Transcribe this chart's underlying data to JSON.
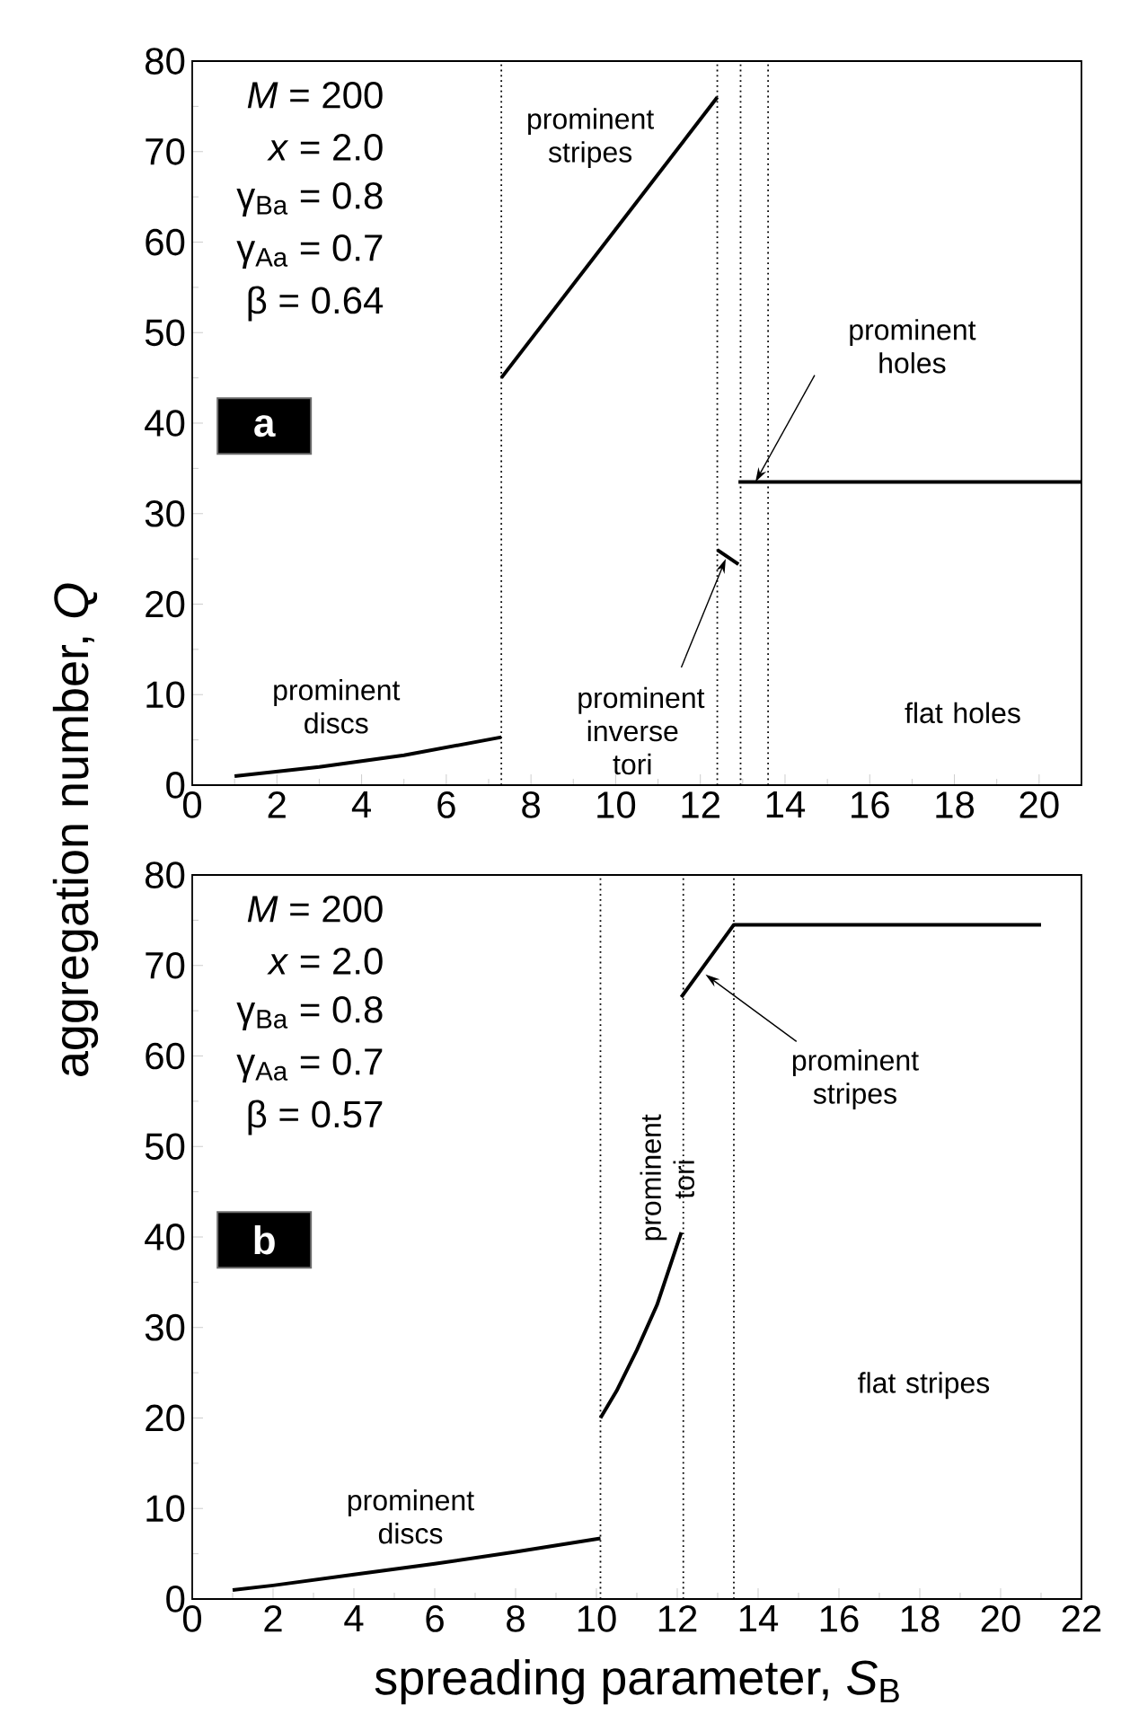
{
  "chart_data": [
    {
      "type": "line",
      "ylabel": "aggregation number, *Q*",
      "xlim": [
        0,
        21
      ],
      "ylim": [
        0,
        80
      ],
      "xticks": [
        0,
        2,
        4,
        6,
        8,
        10,
        12,
        14,
        16,
        18,
        20
      ],
      "yticks": [
        0,
        10,
        20,
        30,
        40,
        50,
        60,
        70,
        80
      ],
      "grid": false,
      "marker": "none",
      "line_style": "solid",
      "series": [
        {
          "color": "#000000",
          "x": [
            1,
            3,
            5,
            7.3
          ],
          "values": [
            1,
            2,
            3.3,
            5.3
          ]
        },
        {
          "color": "#000000",
          "x": [
            7.3,
            12.4
          ],
          "values": [
            45,
            76
          ]
        },
        {
          "color": "#000000",
          "x": [
            12.4,
            12.9
          ],
          "values": [
            26,
            24.4
          ]
        },
        {
          "color": "#000000",
          "x": [
            12.9,
            21
          ],
          "values": [
            33.5,
            33.5
          ]
        }
      ],
      "ref_lines": [
        {
          "axis": "x",
          "value": 7.3,
          "color": "#000000",
          "line_style": "dotted"
        },
        {
          "axis": "x",
          "value": 12.4,
          "color": "#000000",
          "line_style": "dotted"
        },
        {
          "axis": "x",
          "value": 12.95,
          "color": "#000000",
          "line_style": "dotted"
        },
        {
          "axis": "x",
          "value": 13.6,
          "color": "#000000",
          "line_style": "dotted"
        }
      ],
      "annotations": [
        "*M* = 200",
        "*x* = 2.0",
        "γ$_{Ba}$ = 0.8",
        "γ$_{Aa}$ = 0.7",
        "β = 0.64",
        "a",
        "prominent stripes",
        "prominent discs",
        {
          "text": "prominent inverse tori",
          "x": 12.6,
          "y": 25
        },
        {
          "text": "prominent holes",
          "x": 13.3,
          "y": 33.5
        },
        "flat holes"
      ]
    },
    {
      "type": "line",
      "xlabel": "spreading parameter, *S*$_{B}$",
      "xlim": [
        0,
        22
      ],
      "ylim": [
        0,
        80
      ],
      "xticks": [
        0,
        2,
        4,
        6,
        8,
        10,
        12,
        14,
        16,
        18,
        20,
        22
      ],
      "yticks": [
        0,
        10,
        20,
        30,
        40,
        50,
        60,
        70,
        80
      ],
      "grid": false,
      "marker": "none",
      "line_style": "solid",
      "series": [
        {
          "color": "#000000",
          "x": [
            1,
            2,
            4,
            6,
            8,
            10.1
          ],
          "values": [
            1,
            1.5,
            2.7,
            3.9,
            5.2,
            6.7
          ]
        },
        {
          "color": "#000000",
          "x": [
            10.1,
            10.5,
            11,
            11.5,
            12.1
          ],
          "values": [
            20,
            23,
            27.5,
            32.5,
            40.5
          ]
        },
        {
          "color": "#000000",
          "x": [
            12.1,
            13.4,
            21
          ],
          "values": [
            66.5,
            74.5,
            74.5
          ]
        }
      ],
      "ref_lines": [
        {
          "axis": "x",
          "value": 10.1,
          "color": "#000000",
          "line_style": "dotted"
        },
        {
          "axis": "x",
          "value": 12.15,
          "color": "#000000",
          "line_style": "dotted"
        },
        {
          "axis": "x",
          "value": 13.4,
          "color": "#000000",
          "line_style": "dotted"
        }
      ],
      "annotations": [
        "*M* = 200",
        "*x* = 2.0",
        "γ$_{Ba}$ = 0.8",
        "γ$_{Aa}$ = 0.7",
        "β = 0.57",
        "b",
        "prominent discs",
        "prominent tori",
        {
          "text": "prominent stripes",
          "x": 12.7,
          "y": 69
        },
        "flat stripes"
      ]
    }
  ]
}
